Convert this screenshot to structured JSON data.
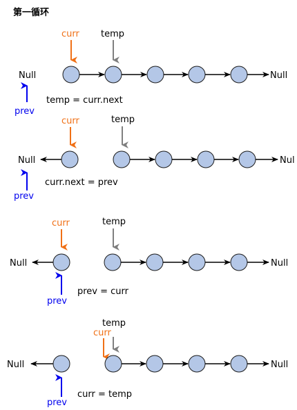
{
  "title": "第一循环",
  "labels": {
    "null": "Null",
    "null_truncated": "Nul",
    "curr": "curr",
    "temp": "temp",
    "prev": "prev"
  },
  "steps": [
    {
      "caption": "temp = curr.next"
    },
    {
      "caption": "curr.next = prev"
    },
    {
      "caption": "prev = curr"
    },
    {
      "caption": "curr = temp"
    }
  ],
  "colors": {
    "node_fill": "#b4c7e7",
    "node_stroke": "#1a1a1a",
    "curr_arrow": "#f07016",
    "temp_arrow": "#7f7f7f",
    "prev_arrow": "#0000ee",
    "link": "#000000"
  }
}
